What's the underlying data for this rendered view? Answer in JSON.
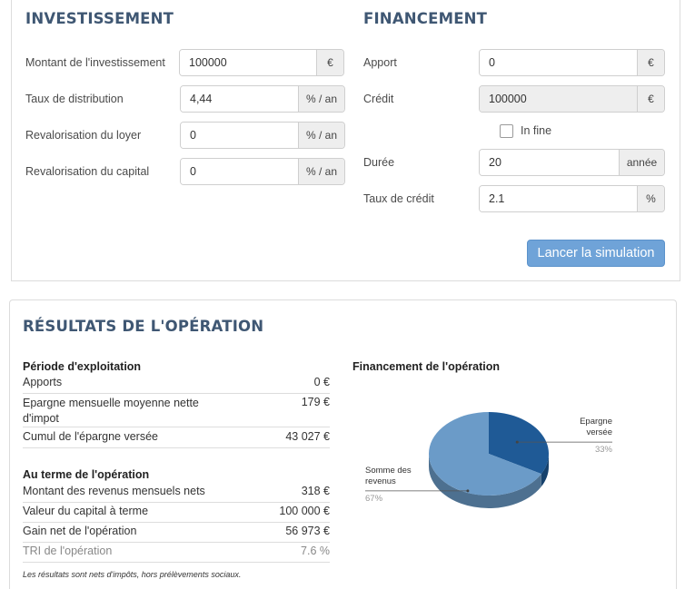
{
  "investissement": {
    "title": "INVESTISSEMENT",
    "fields": [
      {
        "label": "Montant de l'investissement",
        "value": "100000",
        "unit": "€"
      },
      {
        "label": "Taux de distribution",
        "value": "4,44",
        "unit": "% / an"
      },
      {
        "label": "Revalorisation du loyer",
        "value": "0",
        "unit": "% / an"
      },
      {
        "label": "Revalorisation du capital",
        "value": "0",
        "unit": "% / an"
      }
    ]
  },
  "financement": {
    "title": "FINANCEMENT",
    "apport": {
      "label": "Apport",
      "value": "0",
      "unit": "€"
    },
    "credit": {
      "label": "Crédit",
      "value": "100000",
      "unit": "€"
    },
    "in_fine": {
      "label": "In fine",
      "checked": false
    },
    "duree": {
      "label": "Durée",
      "value": "20",
      "unit": "année"
    },
    "taux": {
      "label": "Taux de crédit",
      "value": "2.1",
      "unit": "%"
    },
    "button_label": "Lancer la simulation"
  },
  "resultats": {
    "title": "RÉSULTATS DE L'OPÉRATION",
    "periode": {
      "title": "Période d'exploitation",
      "rows": [
        {
          "label": "Apports",
          "value": "0 €"
        },
        {
          "label": "Epargne mensuelle moyenne nette d'impot",
          "value": "179 €"
        },
        {
          "label": "Cumul de l'épargne versée",
          "value": "43 027 €"
        }
      ]
    },
    "terme": {
      "title": "Au terme de l'opération",
      "rows": [
        {
          "label": "Montant des revenus mensuels nets",
          "value": "318 €"
        },
        {
          "label": "Valeur du capital à terme",
          "value": "100 000 €"
        },
        {
          "label": "Gain net de l'opération",
          "value": "56 973 €"
        },
        {
          "label": "TRI de l'opération",
          "value": "7.6 %"
        }
      ]
    },
    "note": "Les résultats sont nets d'impôts, hors prélèvements sociaux."
  },
  "chart_data": {
    "type": "pie",
    "title": "Financement de l'opération",
    "slices": [
      {
        "name": "Epargne versée",
        "value": 33,
        "label": "33%",
        "color": "#1f5a96"
      },
      {
        "name": "Somme des revenus",
        "value": 67,
        "label": "67%",
        "color": "#6b9bc8"
      }
    ]
  }
}
